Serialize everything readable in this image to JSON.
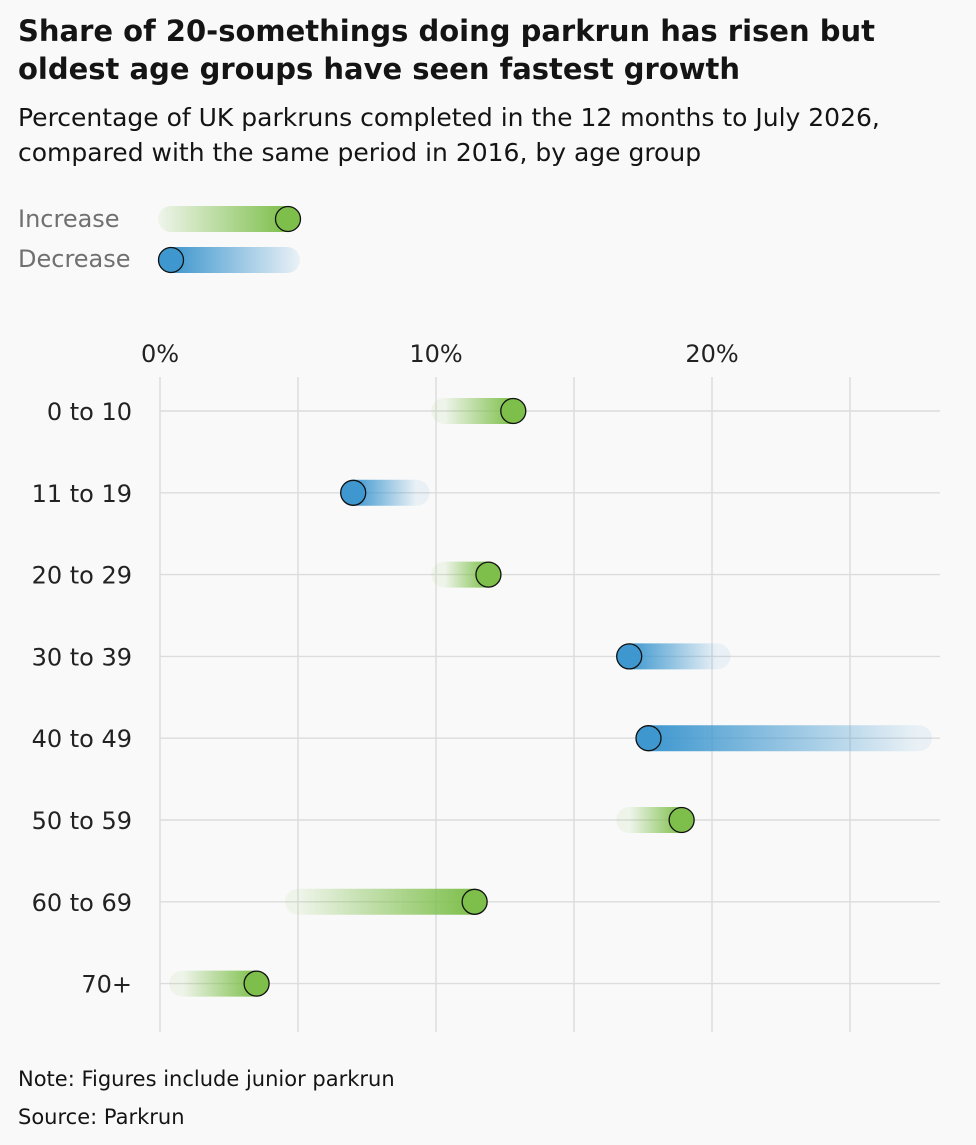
{
  "title": "Share of 20-somethings doing parkrun has risen but oldest age groups have seen fastest growth",
  "subtitle": "Percentage of UK parkruns completed in the 12 months to July 2026, compared with the same period in 2016, by age group",
  "legend": {
    "increase_label": "Increase",
    "decrease_label": "Decrease"
  },
  "colors": {
    "increase": "#7dbf4a",
    "decrease": "#3e97cf",
    "grid": "#dcdcdc",
    "background": "#f9f9f9"
  },
  "chart_data": {
    "type": "dumbbell",
    "title": "Share of 20-somethings doing parkrun has risen but oldest age groups have seen fastest growth",
    "subtitle": "Percentage of UK parkruns completed in the 12 months to July 2026, compared with the same period in 2016, by age group",
    "xlabel": "",
    "ylabel": "",
    "xlim": [
      0,
      28
    ],
    "xticks": [
      0,
      10,
      20
    ],
    "xtick_labels": [
      "0%",
      "10%",
      "20%"
    ],
    "grid": true,
    "legend_position": "top-left",
    "categories": [
      "0 to 10",
      "11 to 19",
      "20 to 29",
      "30 to 39",
      "40 to 49",
      "50 to 59",
      "60 to 69",
      "70+"
    ],
    "series": [
      {
        "name": "2016",
        "values": [
          10.3,
          9.3,
          10.3,
          20.2,
          27.5,
          17.0,
          5.0,
          0.8
        ]
      },
      {
        "name": "2026",
        "values": [
          12.8,
          7.0,
          11.9,
          17.0,
          17.7,
          18.9,
          11.4,
          3.5
        ]
      }
    ]
  },
  "footer": {
    "note": "Note: Figures include junior parkrun",
    "source": "Source: Parkrun"
  }
}
